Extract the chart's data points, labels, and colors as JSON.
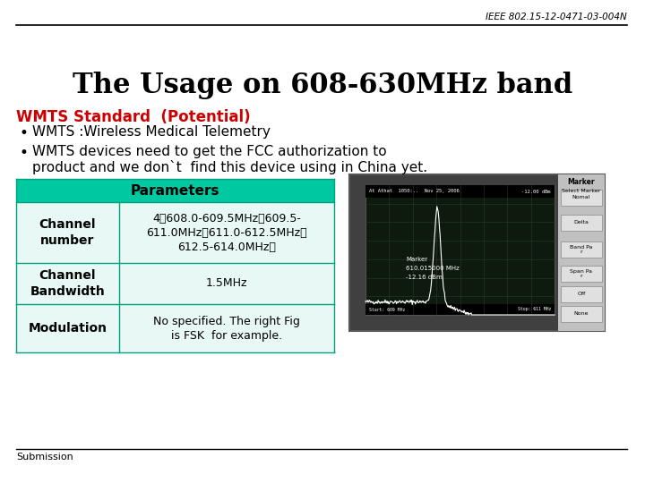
{
  "header_text": "IEEE 802.15-12-0471-03-004N",
  "title": "The Usage on 608-630MHz band",
  "subtitle": "WMTS Standard  (Potential)",
  "bullet1": "WMTS :Wireless Medical Telemetry",
  "bullet2_line1": "WMTS devices need to get the FCC authorization to",
  "bullet2_line2": "product and we don`t  find this device using in China yet.",
  "table_header": "Parameters",
  "row1_col1": "Channel\nnumber",
  "row1_col2": "4（608.0-609.5MHz、609.5-\n611.0MHz、611.0-612.5MHz、\n612.5-614.0MHz）",
  "row2_col1": "Channel\nBandwidth",
  "row2_col2": "1.5MHz",
  "row3_col1": "Modulation",
  "row3_col2": "No specified. The right Fig\nis FSK  for example.",
  "footer_text": "Submission",
  "bg_color": "#ffffff",
  "header_color": "#000000",
  "title_color": "#000000",
  "subtitle_color": "#cc0000",
  "body_color": "#000000",
  "table_header_bg": "#00c8a0",
  "table_cell_bg": "#e8f8f4",
  "table_border_color": "#00a080",
  "top_line_color": "#000000",
  "bottom_line_color": "#000000"
}
